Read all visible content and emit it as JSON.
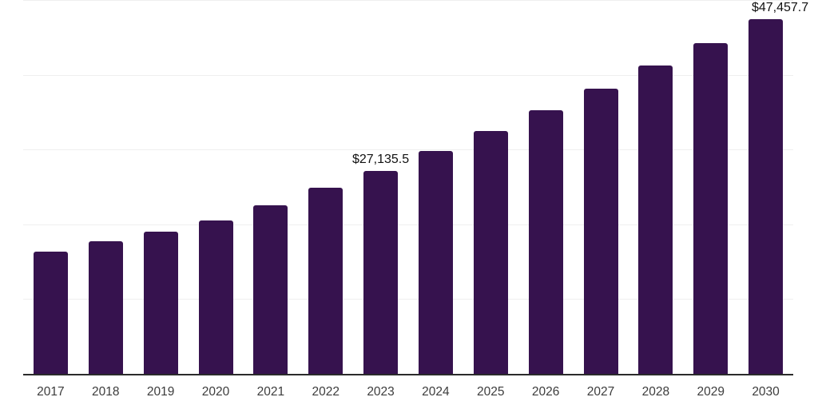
{
  "chart_data": {
    "type": "bar",
    "title": "",
    "xlabel": "",
    "ylabel": "",
    "categories": [
      "2017",
      "2018",
      "2019",
      "2020",
      "2021",
      "2022",
      "2023",
      "2024",
      "2025",
      "2026",
      "2027",
      "2028",
      "2029",
      "2030"
    ],
    "values": [
      16400,
      17700,
      19000,
      20550,
      22550,
      24950,
      27135.5,
      29800,
      32450,
      35300,
      38150,
      41250,
      44250,
      47457.7
    ],
    "data_labels": {
      "2023": "$27,135.5",
      "2030": "$47,457.7"
    },
    "ylim": [
      0,
      50000
    ],
    "gridline_step": 10000,
    "grid": "horizontal",
    "legend": "none"
  },
  "colors": {
    "bar": "#36124E",
    "gridline": "#EFEFEF",
    "axis": "#2B2B2B",
    "tick_label": "#3C3C3C",
    "data_label": "#111111",
    "background": "#FFFFFF"
  }
}
